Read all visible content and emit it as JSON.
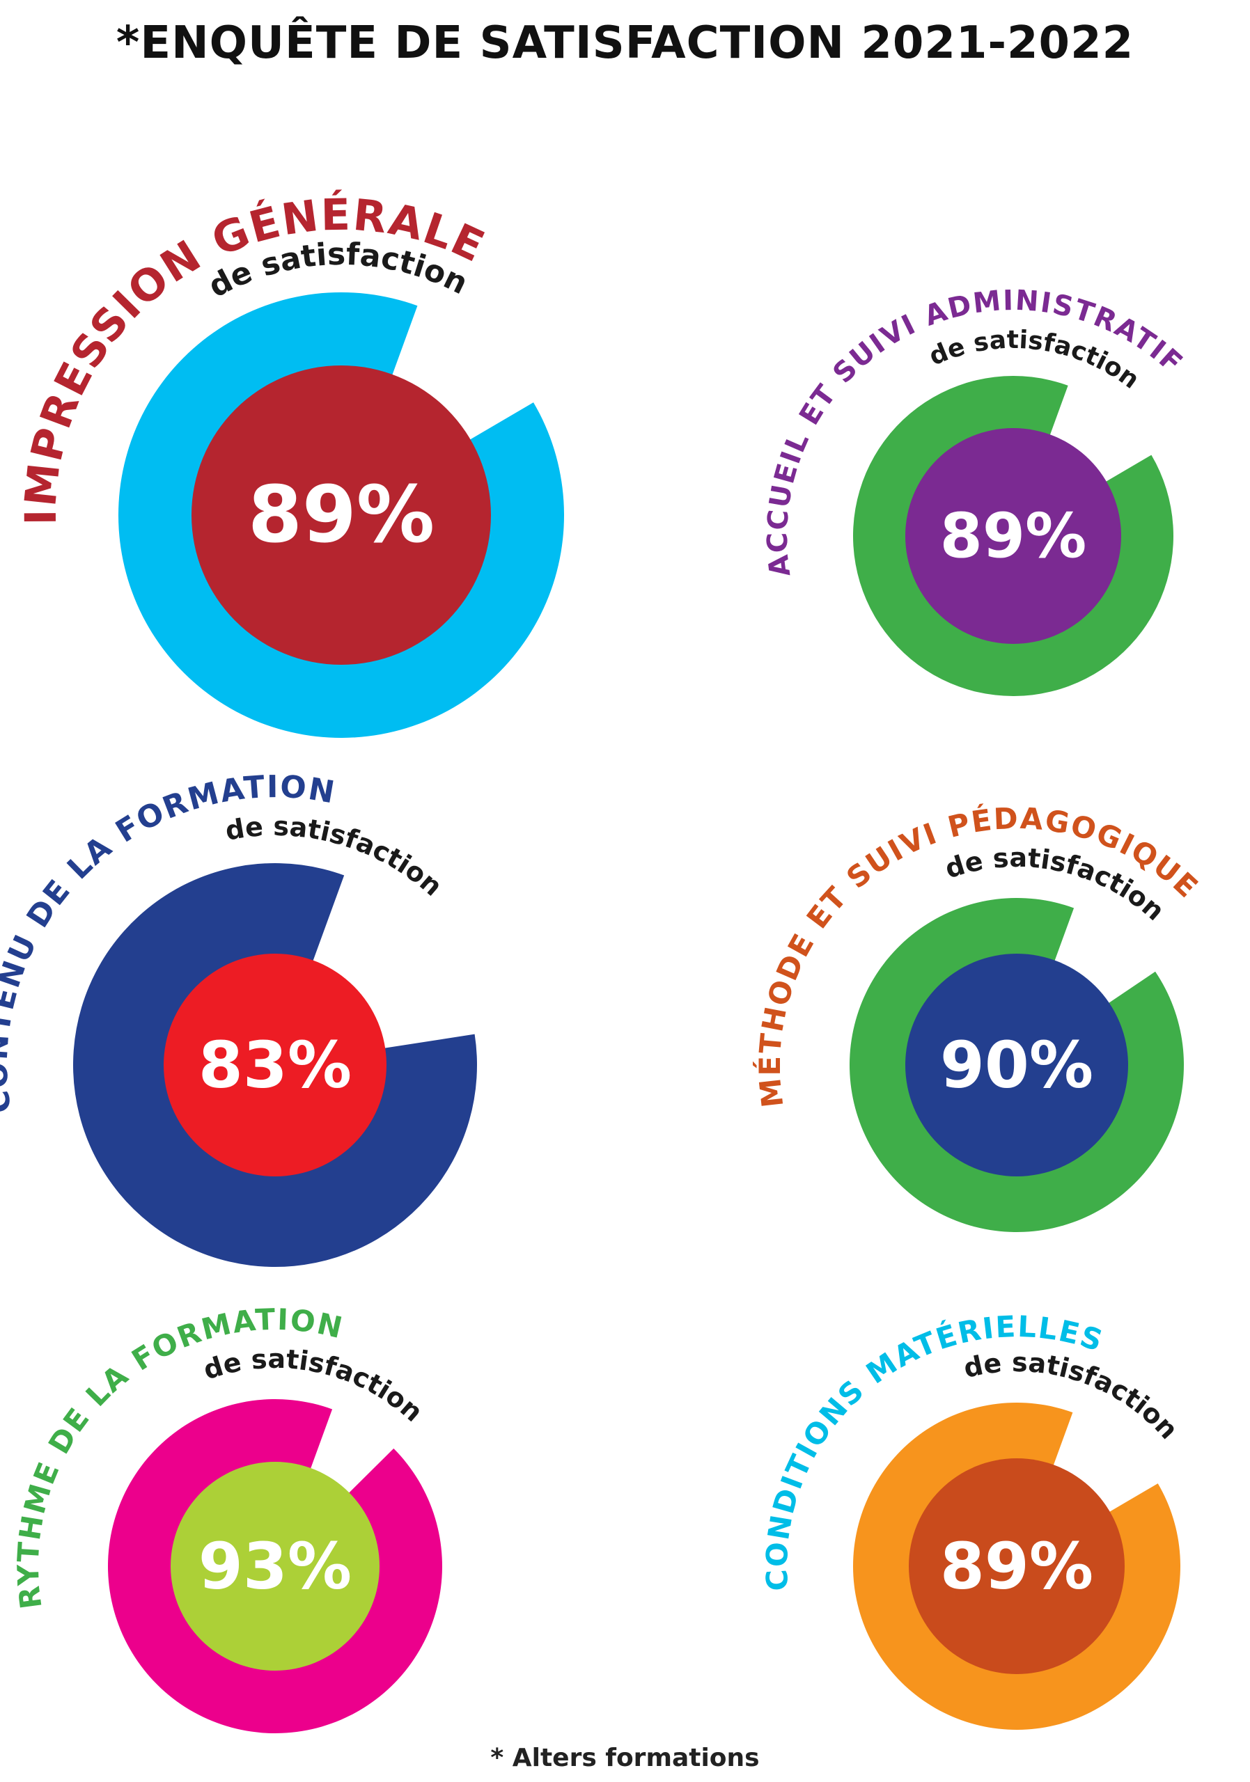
{
  "title": "*ENQUÊTE DE SATISFACTION 2021-2022",
  "footnote": "* Alters formations",
  "chart_data": [
    {
      "type": "pie",
      "title": "IMPRESSION GÉNÉRALE",
      "subtitle": "de satisfaction",
      "value": 89,
      "label": "89%",
      "colors": {
        "title": "#b5252f",
        "ring": "#00bdf2",
        "center": "#b5252f"
      }
    },
    {
      "type": "pie",
      "title": "ACCUEIL ET SUIVI ADMINISTRATIF",
      "subtitle": "de satisfaction",
      "value": 89,
      "label": "89%",
      "colors": {
        "title": "#7b2a92",
        "ring": "#3fae49",
        "center": "#7b2a92"
      }
    },
    {
      "type": "pie",
      "title": "CONTENU DE LA FORMATION",
      "subtitle": "de satisfaction",
      "value": 83,
      "label": "83%",
      "colors": {
        "title": "#233f8f",
        "ring": "#233f8f",
        "center": "#ed1c24"
      }
    },
    {
      "type": "pie",
      "title": "MÉTHODE ET SUIVI PÉDAGOGIQUE",
      "subtitle": "de satisfaction",
      "value": 90,
      "label": "90%",
      "colors": {
        "title": "#d0521c",
        "ring": "#3fae49",
        "center": "#233f8f"
      }
    },
    {
      "type": "pie",
      "title": "RYTHME DE LA FORMATION",
      "subtitle": "de satisfaction",
      "value": 93,
      "label": "93%",
      "colors": {
        "title": "#3fae49",
        "ring": "#ec008c",
        "center": "#acd037"
      }
    },
    {
      "type": "pie",
      "title": "CONDITIONS MATÉRIELLES",
      "subtitle": "de satisfaction",
      "value": 89,
      "label": "89%",
      "colors": {
        "title": "#00bde7",
        "ring": "#f7941d",
        "center": "#c94b1c"
      }
    }
  ]
}
